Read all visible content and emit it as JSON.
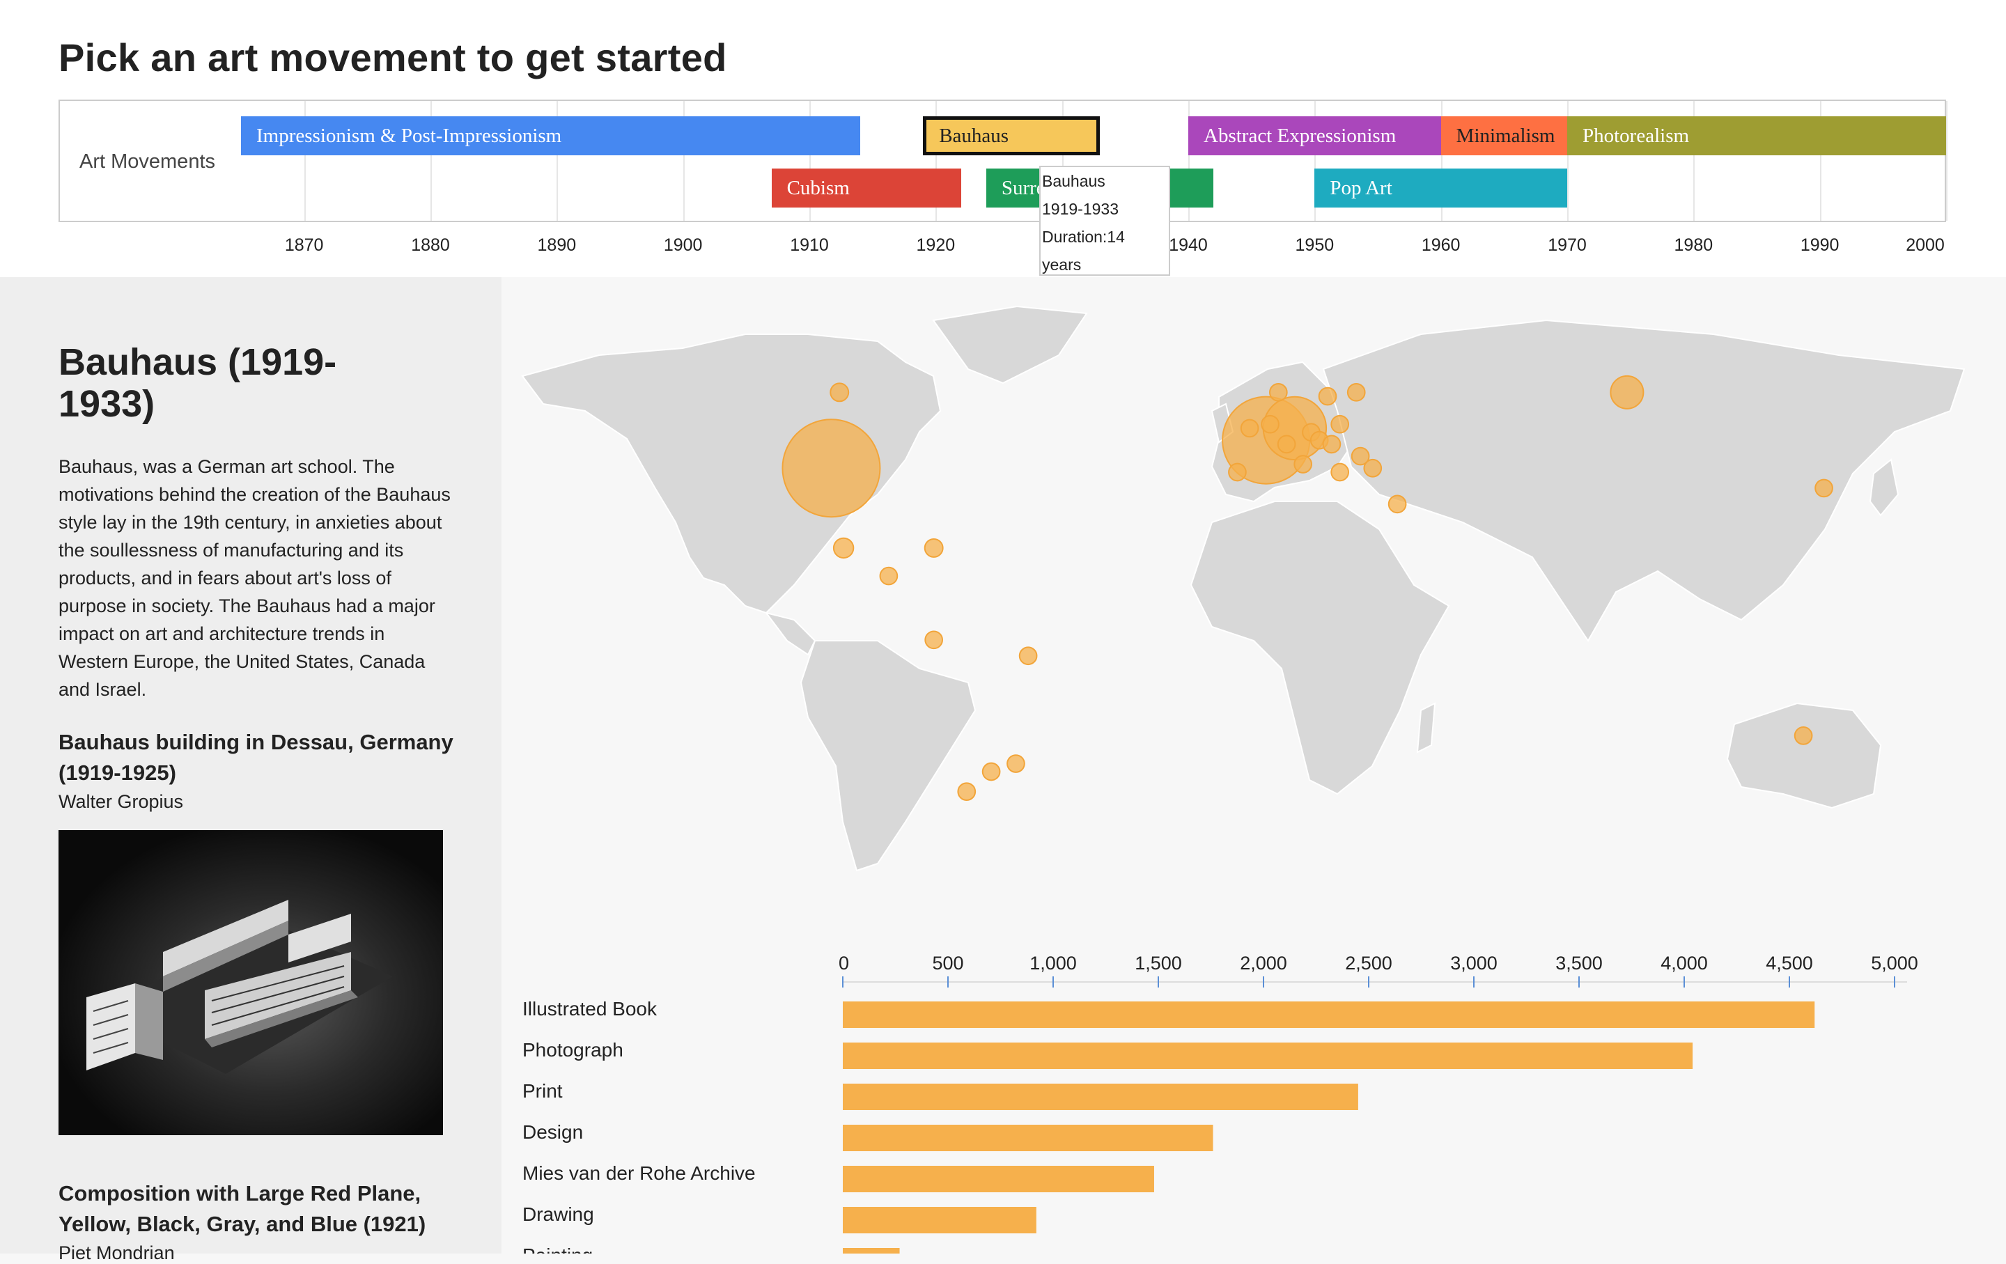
{
  "header": {
    "title": "Pick an art movement to get started"
  },
  "timeline": {
    "row_label": "Art Movements",
    "axis_ticks": [
      "1870",
      "1880",
      "1890",
      "1900",
      "1910",
      "1920",
      "1930",
      "1940",
      "1950",
      "1960",
      "1970",
      "1980",
      "1990",
      "2000"
    ],
    "movements": [
      {
        "name": "Impressionism & Post-Impressionism",
        "start": 1865,
        "end": 1914,
        "row": 0,
        "color": "#4688f1"
      },
      {
        "name": "Cubism",
        "start": 1907,
        "end": 1922,
        "row": 1,
        "color": "#dc4437"
      },
      {
        "name": "Bauhaus",
        "start": 1919,
        "end": 1933,
        "row": 0,
        "color": "#f6c75a",
        "selected": true
      },
      {
        "name": "Surrealism",
        "start": 1924,
        "end": 1942,
        "row": 1,
        "color": "#1e9d59"
      },
      {
        "name": "Abstract Expressionism",
        "start": 1940,
        "end": 1960,
        "row": 0,
        "color": "#aa47bb"
      },
      {
        "name": "Minimalism",
        "start": 1960,
        "end": 1970,
        "row": 0,
        "color": "#fe7042"
      },
      {
        "name": "Pop Art",
        "start": 1950,
        "end": 1970,
        "row": 1,
        "color": "#1eabc0"
      },
      {
        "name": "Photorealism",
        "start": 1970,
        "end": 2000,
        "row": 0,
        "color": "#9e9d32"
      }
    ],
    "tooltip": {
      "name": "Bauhaus",
      "years": "1919-1933",
      "duration": "Duration:14",
      "unit": "years"
    }
  },
  "movement": {
    "title": "Bauhaus (1919-1933)",
    "description": "Bauhaus, was a German art school. The motivations behind the creation of the Bauhaus style lay in the 19th century, in anxieties about the soullessness of manufacturing and its products, and in fears about art's loss of purpose in society. The Bauhaus had a major impact on art and architecture trends in Western Europe, the United States, Canada and Israel.",
    "works": [
      {
        "title": "Bauhaus building in Dessau, Germany (1919-1925)",
        "artist": "Walter Gropius"
      },
      {
        "title": "Composition with Large Red Plane, Yellow, Black, Gray, and Blue (1921)",
        "artist": "Piet Mondrian"
      }
    ]
  },
  "map": {
    "bubble_color": "#f6b04c",
    "bubbles": [
      {
        "lon": -103,
        "lat": 41,
        "size": 1.0
      },
      {
        "lon": 3,
        "lat": 48,
        "size": 0.88
      },
      {
        "lon": 10,
        "lat": 51,
        "size": 0.6
      },
      {
        "lon": 91,
        "lat": 60,
        "size": 0.25
      },
      {
        "lon": -101,
        "lat": 60,
        "size": 0.08
      },
      {
        "lon": -100,
        "lat": 21,
        "size": 0.1
      },
      {
        "lon": -78,
        "lat": 21,
        "size": 0.08
      },
      {
        "lon": -89,
        "lat": 14,
        "size": 0.07
      },
      {
        "lon": -78,
        "lat": -2,
        "size": 0.07
      },
      {
        "lon": -55,
        "lat": -6,
        "size": 0.07
      },
      {
        "lon": -58,
        "lat": -33,
        "size": 0.07
      },
      {
        "lon": -64,
        "lat": -35,
        "size": 0.07
      },
      {
        "lon": -70,
        "lat": -40,
        "size": 0.07
      },
      {
        "lon": 134,
        "lat": -26,
        "size": 0.07
      },
      {
        "lon": 139,
        "lat": 36,
        "size": 0.07
      },
      {
        "lon": 35,
        "lat": 32,
        "size": 0.07
      },
      {
        "lon": 29,
        "lat": 41,
        "size": 0.07
      },
      {
        "lon": 6,
        "lat": 60,
        "size": 0.07
      },
      {
        "lon": 18,
        "lat": 59,
        "size": 0.07
      },
      {
        "lon": 25,
        "lat": 60,
        "size": 0.07
      },
      {
        "lon": 21,
        "lat": 52,
        "size": 0.07
      },
      {
        "lon": 14,
        "lat": 50,
        "size": 0.07
      },
      {
        "lon": 16,
        "lat": 48,
        "size": 0.07
      },
      {
        "lon": 19,
        "lat": 47,
        "size": 0.07
      },
      {
        "lon": 26,
        "lat": 44,
        "size": 0.07
      },
      {
        "lon": 12,
        "lat": 42,
        "size": 0.07
      },
      {
        "lon": -4,
        "lat": 40,
        "size": 0.07
      },
      {
        "lon": -1,
        "lat": 51,
        "size": 0.07
      },
      {
        "lon": 4,
        "lat": 52,
        "size": 0.07
      },
      {
        "lon": 8,
        "lat": 47,
        "size": 0.07
      },
      {
        "lon": 21,
        "lat": 40,
        "size": 0.07
      }
    ]
  },
  "chart_data": {
    "type": "bar",
    "orientation": "horizontal",
    "categories": [
      "Illustrated Book",
      "Photograph",
      "Print",
      "Design",
      "Mies van der Rohe Archive",
      "Drawing",
      "Painting"
    ],
    "values": [
      4620,
      4040,
      2450,
      1760,
      1480,
      920,
      270
    ],
    "axis_ticks": [
      "0",
      "500",
      "1,000",
      "1,500",
      "2,000",
      "2,500",
      "3,000",
      "3,500",
      "4,000",
      "4,500",
      "5,000"
    ],
    "xlim": [
      0,
      5000
    ],
    "color": "#f6b04c"
  }
}
